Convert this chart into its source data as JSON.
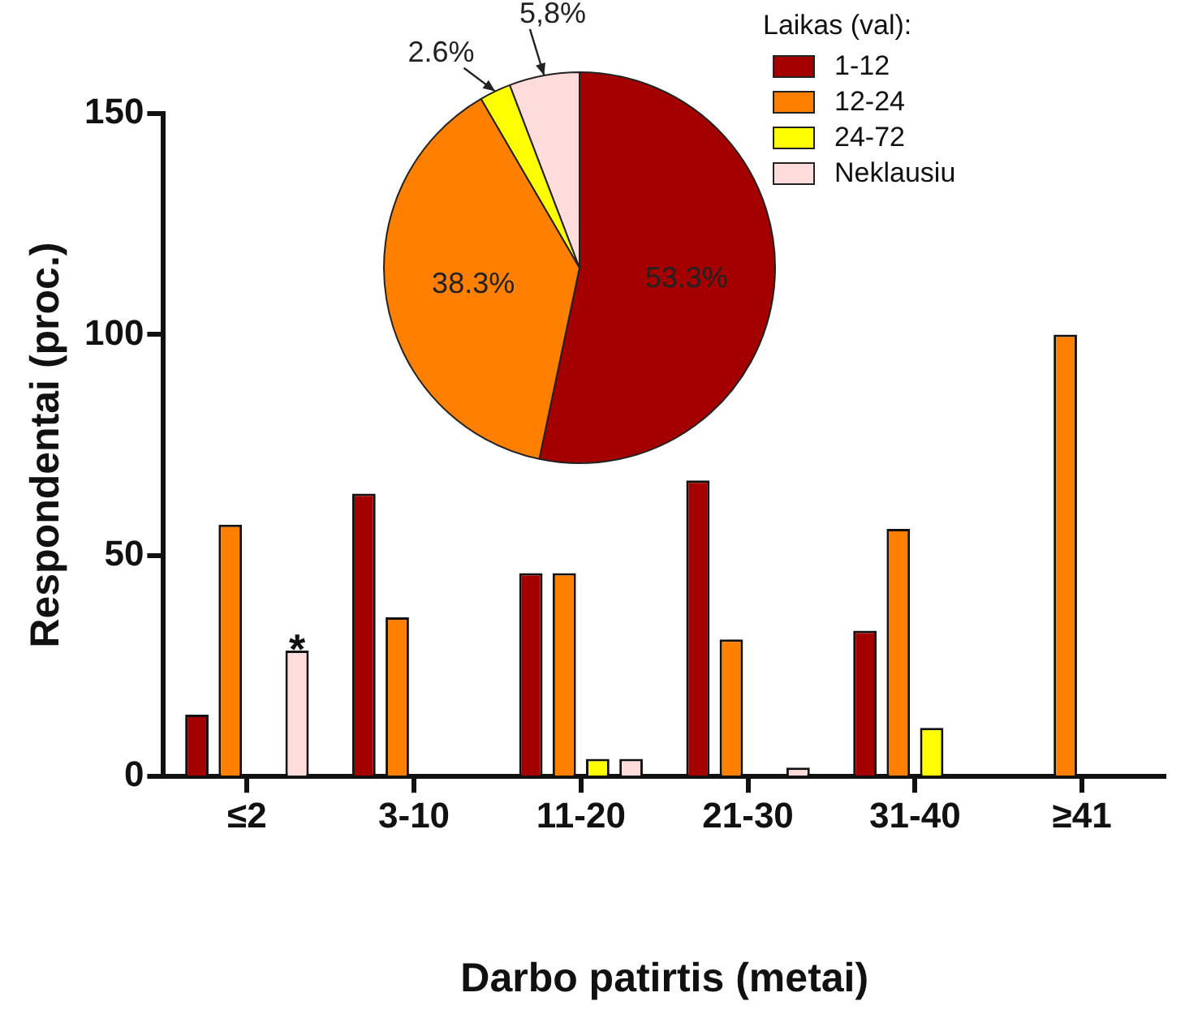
{
  "chart_data": [
    {
      "type": "bar",
      "xlabel": "Darbo patirtis (metai)",
      "ylabel": "Respondentai (proc.)",
      "categories": [
        "≤2",
        "3-10",
        "11-20",
        "21-30",
        "31-40",
        "≥41"
      ],
      "series": [
        {
          "color": "#a50000",
          "values": [
            14,
            64,
            46,
            67,
            33,
            null
          ]
        },
        {
          "color": "#ff8000",
          "values": [
            57,
            36,
            46,
            31,
            56,
            100
          ]
        },
        {
          "color": "#ffff00",
          "values": [
            null,
            null,
            4,
            null,
            11,
            null
          ]
        },
        {
          "color": "#fedcdc",
          "values": [
            28.5,
            null,
            4,
            2,
            null,
            null
          ]
        }
      ],
      "ylim": [
        0,
        150
      ],
      "yticks": [
        0,
        50,
        100,
        150
      ],
      "grid": false,
      "legend": false,
      "annotations": [
        {
          "text": "*",
          "x": "≤2",
          "y": 28.5
        }
      ]
    },
    {
      "type": "pie",
      "legend_title": "Laikas (val):",
      "categories": [
        "1-12",
        "12-24",
        "24-72",
        "Neklausiu"
      ],
      "values": [
        53.3,
        38.3,
        2.6,
        5.8
      ],
      "colors": [
        "#a50000",
        "#ff8000",
        "#ffff00",
        "#fedcdc"
      ],
      "value_labels": [
        "53.3%",
        "38.3%",
        "2.6%",
        "5,8%"
      ],
      "legend": "right"
    }
  ]
}
